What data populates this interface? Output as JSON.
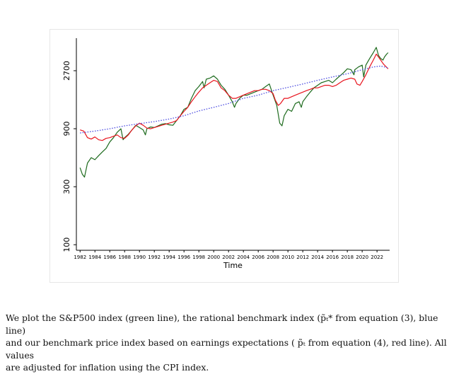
{
  "chart_data": {
    "type": "line",
    "xlabel": "Time",
    "ylabel": "",
    "y_scale": "log",
    "ylim": [
      90,
      5000
    ],
    "xlim": [
      1981.5,
      2023.7
    ],
    "x_ticks": [
      "1982",
      "1984",
      "1986",
      "1988",
      "1990",
      "1992",
      "1994",
      "1996",
      "1998",
      "2000",
      "2002",
      "2004",
      "2006",
      "2008",
      "2010",
      "2012",
      "2014",
      "2016",
      "2018",
      "2020",
      "2022"
    ],
    "y_ticks": [
      {
        "value": 100,
        "label": "100"
      },
      {
        "value": 300,
        "label": "300"
      },
      {
        "value": 900,
        "label": "900"
      },
      {
        "value": 2700,
        "label": "2700"
      }
    ],
    "grid": false,
    "legend": "none",
    "series": [
      {
        "color": "#1e6b1e",
        "style": "solid",
        "x": [
          1982.0,
          1982.3,
          1982.6,
          1983.0,
          1983.5,
          1984.0,
          1984.5,
          1985.0,
          1985.5,
          1986.0,
          1986.5,
          1987.0,
          1987.5,
          1987.8,
          1988.0,
          1988.5,
          1989.0,
          1989.5,
          1990.0,
          1990.5,
          1990.8,
          1991.0,
          1991.5,
          1992.0,
          1992.5,
          1993.0,
          1993.5,
          1994.0,
          1994.5,
          1995.0,
          1995.5,
          1996.0,
          1996.5,
          1997.0,
          1997.5,
          1998.0,
          1998.5,
          1998.7,
          1999.0,
          1999.5,
          2000.0,
          2000.5,
          2001.0,
          2001.5,
          2002.0,
          2002.5,
          2002.8,
          2003.0,
          2003.5,
          2004.0,
          2004.5,
          2005.0,
          2005.5,
          2006.0,
          2006.5,
          2007.0,
          2007.5,
          2008.0,
          2008.5,
          2008.9,
          2009.2,
          2009.5,
          2010.0,
          2010.5,
          2011.0,
          2011.5,
          2011.8,
          2012.0,
          2012.5,
          2013.0,
          2013.5,
          2014.0,
          2014.5,
          2015.0,
          2015.5,
          2016.0,
          2016.5,
          2017.0,
          2017.5,
          2018.0,
          2018.5,
          2018.9,
          2019.0,
          2019.5,
          2020.0,
          2020.2,
          2020.5,
          2021.0,
          2021.5,
          2021.9,
          2022.2,
          2022.5,
          2022.8,
          2023.0,
          2023.3,
          2023.5
        ],
        "y": [
          430,
          380,
          360,
          470,
          520,
          500,
          540,
          580,
          620,
          700,
          760,
          840,
          900,
          730,
          760,
          810,
          880,
          960,
          920,
          880,
          800,
          900,
          930,
          920,
          950,
          980,
          990,
          970,
          960,
          1050,
          1150,
          1300,
          1350,
          1600,
          1850,
          2000,
          2200,
          1950,
          2300,
          2350,
          2450,
          2300,
          2050,
          1900,
          1700,
          1500,
          1350,
          1450,
          1600,
          1700,
          1700,
          1750,
          1800,
          1850,
          1900,
          2000,
          2100,
          1700,
          1400,
          1000,
          950,
          1150,
          1300,
          1250,
          1450,
          1500,
          1350,
          1500,
          1650,
          1800,
          1950,
          2050,
          2150,
          2200,
          2250,
          2150,
          2300,
          2450,
          2600,
          2800,
          2750,
          2500,
          2750,
          2900,
          3000,
          2400,
          3000,
          3400,
          3800,
          4200,
          3600,
          3400,
          3300,
          3500,
          3700,
          3800
        ]
      },
      {
        "color": "#e8141e",
        "style": "solid",
        "x": [
          1982.0,
          1982.5,
          1983.0,
          1983.5,
          1984.0,
          1984.5,
          1985.0,
          1985.5,
          1986.0,
          1986.5,
          1987.0,
          1987.5,
          1988.0,
          1988.5,
          1989.0,
          1989.5,
          1990.0,
          1990.5,
          1991.0,
          1991.5,
          1992.0,
          1992.5,
          1993.0,
          1993.5,
          1994.0,
          1994.5,
          1995.0,
          1995.5,
          1996.0,
          1996.5,
          1997.0,
          1997.5,
          1998.0,
          1998.5,
          1999.0,
          1999.5,
          2000.0,
          2000.5,
          2001.0,
          2001.5,
          2002.0,
          2002.5,
          2003.0,
          2003.5,
          2004.0,
          2004.5,
          2005.0,
          2005.5,
          2006.0,
          2006.5,
          2007.0,
          2007.5,
          2008.0,
          2008.3,
          2008.7,
          2009.0,
          2009.5,
          2010.0,
          2010.5,
          2011.0,
          2011.5,
          2012.0,
          2012.5,
          2013.0,
          2013.5,
          2014.0,
          2014.5,
          2015.0,
          2015.5,
          2016.0,
          2016.5,
          2017.0,
          2017.5,
          2018.0,
          2018.5,
          2019.0,
          2019.3,
          2019.7,
          2020.0,
          2020.5,
          2021.0,
          2021.5,
          2021.9,
          2022.2,
          2022.5,
          2022.8,
          2023.0,
          2023.5
        ],
        "y": [
          880,
          860,
          760,
          740,
          770,
          730,
          720,
          750,
          760,
          780,
          800,
          760,
          750,
          800,
          880,
          950,
          1000,
          960,
          910,
          900,
          920,
          940,
          960,
          980,
          1000,
          1020,
          1050,
          1150,
          1250,
          1350,
          1500,
          1650,
          1800,
          1950,
          2050,
          2150,
          2250,
          2200,
          1950,
          1850,
          1700,
          1600,
          1600,
          1650,
          1700,
          1750,
          1800,
          1850,
          1850,
          1900,
          1900,
          1850,
          1750,
          1550,
          1400,
          1450,
          1600,
          1600,
          1650,
          1700,
          1750,
          1800,
          1850,
          1900,
          1950,
          1950,
          2000,
          2050,
          2050,
          2000,
          2050,
          2150,
          2250,
          2300,
          2350,
          2300,
          2100,
          2050,
          2200,
          2500,
          2900,
          3300,
          3700,
          3500,
          3300,
          3100,
          3000,
          2800
        ]
      },
      {
        "color": "#4a4ae0",
        "style": "dotted",
        "x": [
          1982.0,
          1984.0,
          1986.0,
          1988.0,
          1990.0,
          1992.0,
          1994.0,
          1996.0,
          1998.0,
          2000.0,
          2002.0,
          2004.0,
          2006.0,
          2008.0,
          2010.0,
          2012.0,
          2014.0,
          2016.0,
          2018.0,
          2020.0,
          2021.5,
          2022.5,
          2023.5
        ],
        "y": [
          830,
          860,
          900,
          950,
          990,
          1030,
          1080,
          1150,
          1260,
          1350,
          1450,
          1600,
          1700,
          1850,
          1970,
          2100,
          2250,
          2400,
          2550,
          2750,
          2900,
          2950,
          2850
        ]
      }
    ]
  },
  "caption": {
    "line1": "We plot the S&P500 index (green line), the rational benchmark index (p̃ₜ* from equation (3), blue line)",
    "line2": "and our benchmark price index based on earnings expectations ( p̃ₜ from equation (4), red line).  All values",
    "line3": "are adjusted for inflation using the CPI index."
  }
}
